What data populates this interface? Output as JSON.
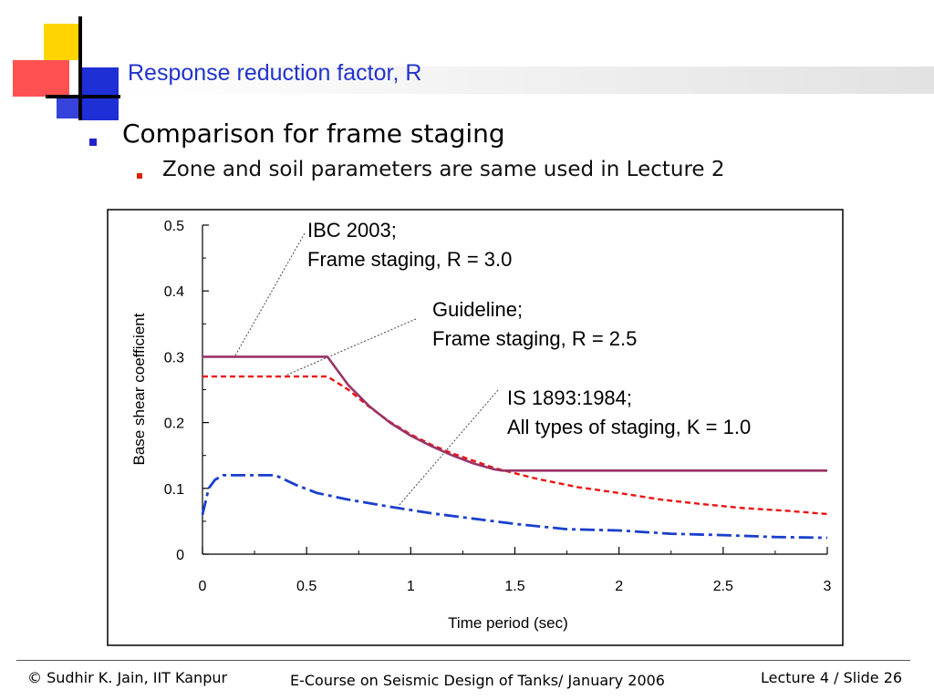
{
  "slide": {
    "title": "Response reduction factor, R",
    "bullet1": "Comparison for frame staging",
    "bullet2": "Zone and soil parameters are same used in Lecture 2"
  },
  "footer": {
    "left": "© Sudhir K. Jain, IIT Kanpur",
    "center": "E-Course on Seismic Design of Tanks/ January 2006",
    "right": "Lecture 4 / Slide 26"
  },
  "colors": {
    "title": "#2233cc",
    "ibc": "#993366",
    "guideline": "#ee1111",
    "is1893": "#1a3fcc"
  },
  "chart_data": {
    "type": "line",
    "xlabel": "Time period (sec)",
    "ylabel": "Base shear coefficient",
    "xlim": [
      0,
      3
    ],
    "ylim": [
      0,
      0.5
    ],
    "x_ticks": [
      "0",
      "0.5",
      "1",
      "1.5",
      "2",
      "2.5",
      "3"
    ],
    "y_ticks": [
      "0",
      "0.1",
      "0.2",
      "0.3",
      "0.4",
      "0.5"
    ],
    "grid": false,
    "series": [
      {
        "name": "IBC 2003; Frame staging, R = 3.0",
        "style": "solid",
        "x": [
          0,
          0.6,
          0.7,
          0.8,
          0.9,
          1.0,
          1.1,
          1.2,
          1.3,
          1.4,
          1.44,
          3.0
        ],
        "y": [
          0.3,
          0.3,
          0.257,
          0.225,
          0.2,
          0.18,
          0.164,
          0.15,
          0.138,
          0.129,
          0.127,
          0.127
        ]
      },
      {
        "name": "Guideline; Frame staging, R = 2.5",
        "style": "dashed",
        "x": [
          0,
          0.6,
          0.7,
          0.8,
          0.9,
          1.0,
          1.1,
          1.2,
          1.4,
          1.6,
          1.8,
          2.0,
          2.2,
          2.4,
          2.6,
          2.8,
          3.0
        ],
        "y": [
          0.27,
          0.27,
          0.25,
          0.224,
          0.201,
          0.182,
          0.166,
          0.153,
          0.131,
          0.115,
          0.102,
          0.093,
          0.083,
          0.076,
          0.07,
          0.066,
          0.061
        ]
      },
      {
        "name": "IS 1893:1984; All types of staging, K = 1.0",
        "style": "dashdot",
        "x": [
          0,
          0.03,
          0.06,
          0.1,
          0.2,
          0.35,
          0.45,
          0.55,
          0.7,
          0.9,
          1.1,
          1.3,
          1.5,
          1.75,
          2.0,
          2.25,
          2.5,
          2.75,
          3.0
        ],
        "y": [
          0.06,
          0.1,
          0.113,
          0.12,
          0.12,
          0.12,
          0.105,
          0.093,
          0.083,
          0.072,
          0.062,
          0.054,
          0.046,
          0.038,
          0.036,
          0.031,
          0.029,
          0.026,
          0.025
        ]
      }
    ],
    "annotations": [
      {
        "line1": "IBC 2003;",
        "line2": "Frame staging, R = 3.0"
      },
      {
        "line1": "Guideline;",
        "line2": "Frame staging, R = 2.5"
      },
      {
        "line1": "IS 1893:1984;",
        "line2": "All types of staging, K = 1.0"
      }
    ]
  }
}
